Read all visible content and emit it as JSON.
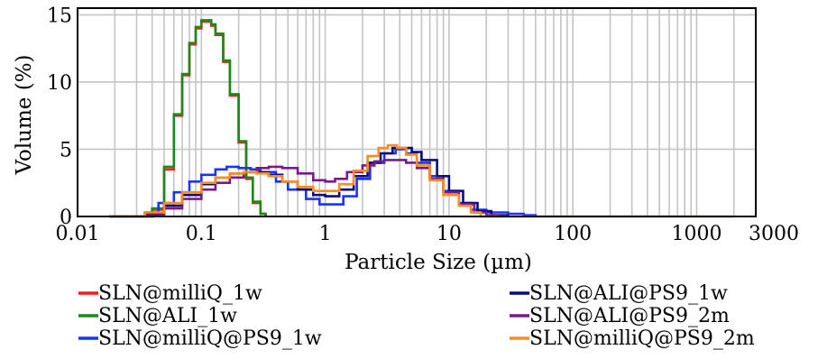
{
  "chart_data": {
    "type": "line",
    "x_scale": "log",
    "xlabel": "Particle Size (µm)",
    "ylabel": "Volume (%)",
    "xlim": [
      0.01,
      3000
    ],
    "ylim": [
      0,
      15.5
    ],
    "x_ticks": [
      {
        "value": 0.01,
        "label": "0.01"
      },
      {
        "value": 0.1,
        "label": "0.1"
      },
      {
        "value": 1,
        "label": "1"
      },
      {
        "value": 10,
        "label": "10"
      },
      {
        "value": 100,
        "label": "100"
      },
      {
        "value": 1000,
        "label": "1000"
      },
      {
        "value": 3000,
        "label": "3000"
      }
    ],
    "y_ticks": [
      {
        "value": 0,
        "label": "0"
      },
      {
        "value": 5,
        "label": "5"
      },
      {
        "value": 10,
        "label": "10"
      },
      {
        "value": 15,
        "label": "15"
      }
    ],
    "grid": true,
    "legend_position": "bottom",
    "series": [
      {
        "name": "SLN@milliQ_1w",
        "color": "#ff1a1a",
        "x": [
          0.035,
          0.04,
          0.05,
          0.06,
          0.07,
          0.08,
          0.09,
          0.1,
          0.11,
          0.12,
          0.13,
          0.15,
          0.17,
          0.2,
          0.23,
          0.26,
          0.3,
          0.33
        ],
        "y": [
          0.0,
          0.5,
          3.5,
          7.5,
          10.5,
          12.8,
          14.0,
          14.5,
          14.5,
          14.2,
          13.5,
          11.5,
          9.0,
          5.5,
          2.8,
          1.0,
          0.2,
          0.0
        ]
      },
      {
        "name": "SLN@ALI_1w",
        "color": "#1a8a1a",
        "x": [
          0.035,
          0.04,
          0.05,
          0.06,
          0.07,
          0.08,
          0.09,
          0.1,
          0.11,
          0.12,
          0.13,
          0.15,
          0.17,
          0.2,
          0.23,
          0.26,
          0.3,
          0.33
        ],
        "y": [
          0.0,
          0.6,
          3.7,
          7.6,
          10.6,
          12.9,
          14.1,
          14.6,
          14.6,
          14.3,
          13.6,
          11.6,
          9.1,
          5.6,
          2.9,
          1.1,
          0.2,
          0.0
        ]
      },
      {
        "name": "SLN@milliQ@PS9_1w",
        "color": "#1a33ff",
        "x": [
          0.018,
          0.03,
          0.035,
          0.045,
          0.06,
          0.08,
          0.1,
          0.13,
          0.16,
          0.2,
          0.25,
          0.3,
          0.4,
          0.5,
          0.7,
          0.9,
          1.1,
          1.4,
          1.8,
          2.3,
          3.0,
          3.7,
          4.5,
          5.5,
          7,
          9,
          12,
          15,
          20,
          30,
          40,
          50
        ],
        "y": [
          0.0,
          0.0,
          0.3,
          1.0,
          1.8,
          2.6,
          3.1,
          3.5,
          3.7,
          3.6,
          3.5,
          3.3,
          2.6,
          2.0,
          1.3,
          0.9,
          0.9,
          1.5,
          2.8,
          4.0,
          4.7,
          5.0,
          4.7,
          4.0,
          3.0,
          1.9,
          1.0,
          0.5,
          0.3,
          0.2,
          0.1,
          0.0
        ]
      },
      {
        "name": "SLN@ALI@PS9_1w",
        "color": "#0d0d7a",
        "x": [
          0.018,
          0.03,
          0.035,
          0.05,
          0.07,
          0.1,
          0.13,
          0.17,
          0.22,
          0.28,
          0.35,
          0.45,
          0.6,
          0.8,
          1.0,
          1.3,
          1.7,
          2.2,
          2.8,
          3.5,
          4.2,
          5.0,
          6,
          8,
          10,
          13,
          17,
          22,
          30
        ],
        "y": [
          0.0,
          0.0,
          0.2,
          0.8,
          1.6,
          2.4,
          2.9,
          3.2,
          3.3,
          3.3,
          3.1,
          2.6,
          2.0,
          1.6,
          1.5,
          2.0,
          3.0,
          4.0,
          4.7,
          5.1,
          5.1,
          4.8,
          4.2,
          3.0,
          1.9,
          1.0,
          0.4,
          0.1,
          0.0
        ]
      },
      {
        "name": "SLN@ALI@PS9_2m",
        "color": "#7a1a8a",
        "x": [
          0.018,
          0.03,
          0.035,
          0.05,
          0.07,
          0.1,
          0.13,
          0.17,
          0.22,
          0.28,
          0.35,
          0.45,
          0.6,
          0.8,
          1.0,
          1.2,
          1.5,
          2.0,
          2.5,
          3.0,
          3.7,
          4.5,
          5.5,
          7,
          9,
          12,
          16,
          20,
          25
        ],
        "y": [
          0.0,
          0.0,
          0.1,
          0.6,
          1.3,
          2.0,
          2.5,
          2.9,
          3.3,
          3.6,
          3.7,
          3.6,
          3.2,
          2.7,
          2.6,
          2.8,
          3.3,
          3.8,
          4.1,
          4.2,
          4.2,
          4.0,
          3.6,
          2.8,
          1.8,
          0.9,
          0.3,
          0.1,
          0.0
        ]
      },
      {
        "name": "SLN@milliQ@PS9_2m",
        "color": "#ff8c1a",
        "x": [
          0.018,
          0.03,
          0.035,
          0.05,
          0.07,
          0.1,
          0.13,
          0.17,
          0.22,
          0.28,
          0.35,
          0.45,
          0.6,
          0.8,
          1.0,
          1.3,
          1.7,
          2.2,
          2.7,
          3.2,
          3.8,
          4.5,
          5.5,
          7,
          9,
          12,
          15,
          18,
          25,
          100,
          1000,
          2000
        ],
        "y": [
          0.0,
          0.0,
          0.3,
          1.0,
          1.8,
          2.5,
          2.9,
          3.2,
          3.3,
          3.2,
          3.0,
          2.6,
          2.2,
          1.9,
          1.9,
          2.4,
          3.4,
          4.5,
          5.1,
          5.3,
          5.1,
          4.6,
          3.8,
          2.7,
          1.6,
          0.8,
          0.3,
          0.0,
          0.0,
          0.0,
          0.0,
          0.0
        ]
      }
    ]
  }
}
